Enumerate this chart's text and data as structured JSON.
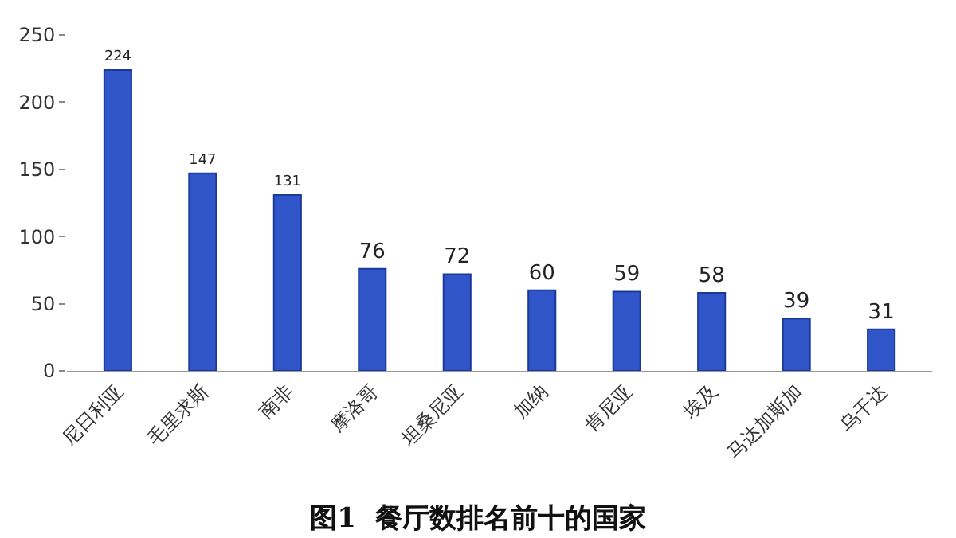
{
  "chart_data": {
    "type": "bar",
    "title": "图1  餐厅数排名前十的国家",
    "categories": [
      "尼日利亚",
      "毛里求斯",
      "南非",
      "摩洛哥",
      "坦桑尼亚",
      "加纳",
      "肯尼亚",
      "埃及",
      "马达加斯加",
      "乌干达"
    ],
    "values": [
      224,
      147,
      131,
      76,
      72,
      60,
      59,
      58,
      39,
      31
    ],
    "color": "#2f55c8",
    "ylim": [
      0,
      250
    ],
    "yticks": [
      0,
      50,
      100,
      150,
      200,
      250
    ],
    "grid": false,
    "data_labels": true
  }
}
